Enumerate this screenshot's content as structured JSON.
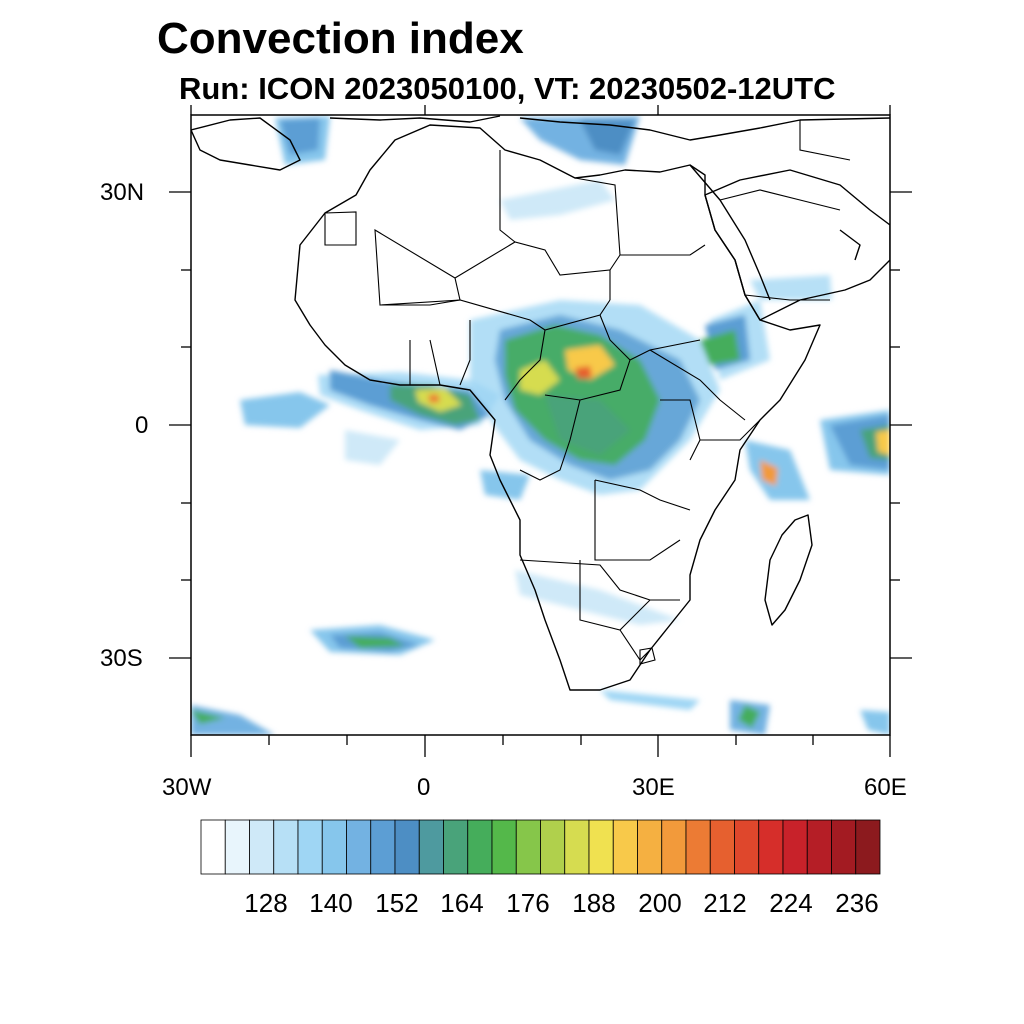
{
  "title": "Convection index",
  "subtitle": "Run: ICON 2023050100,  VT: 20230502-12UTC",
  "axes": {
    "lat_labels": [
      "30N",
      "0",
      "30S"
    ],
    "lon_labels": [
      "30W",
      "0",
      "30E",
      "60E"
    ]
  },
  "colorbar": {
    "labels": [
      "128",
      "140",
      "152",
      "164",
      "176",
      "188",
      "200",
      "212",
      "224",
      "236"
    ],
    "colors": [
      "#ffffff",
      "#e8f5fc",
      "#cfe9f8",
      "#b7e0f6",
      "#9fd6f4",
      "#86c6ec",
      "#73b2e2",
      "#5c9ed4",
      "#4d8ec4",
      "#4e9a9f",
      "#49a37a",
      "#45ad5b",
      "#54b84a",
      "#86c64a",
      "#b0d04c",
      "#d6dc50",
      "#f0e150",
      "#f8c94a",
      "#f5b041",
      "#f29a3b",
      "#ec7b34",
      "#e6602f",
      "#df472c",
      "#d62e2a",
      "#c8222a",
      "#b51e26",
      "#a31b22",
      "#8c1a1e"
    ]
  },
  "map": {
    "projection": "cylindrical-equidistant",
    "lon_range": [
      -30,
      60
    ],
    "lat_range": [
      -40,
      40
    ],
    "variable": "Convection index"
  }
}
